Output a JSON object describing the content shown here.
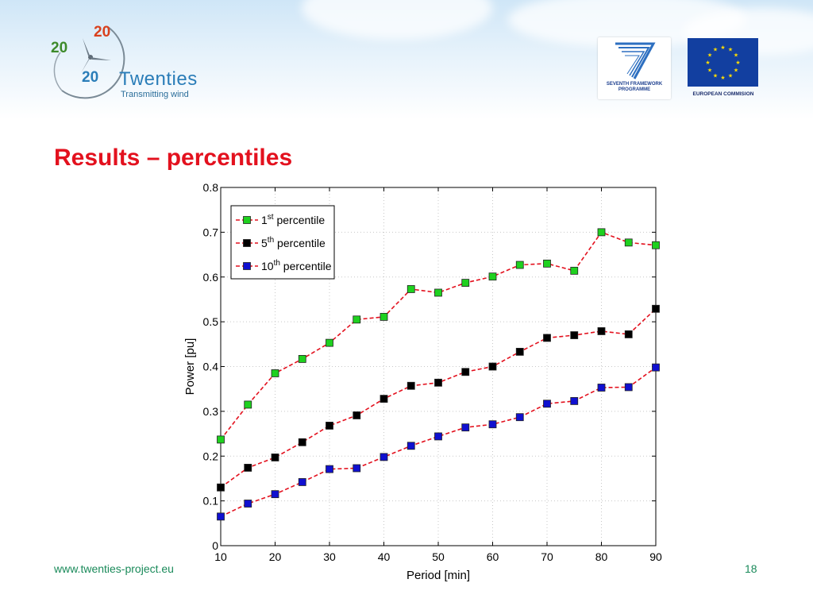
{
  "header": {
    "logo": {
      "top_number": "20",
      "left_number": "20",
      "bottom_number": "20",
      "name": "Twenties",
      "tagline": "Transmitting wind"
    },
    "fp7_logo": {
      "line1": "SEVENTH FRAMEWORK",
      "line2": "PROGRAMME"
    },
    "eu_logo": {
      "label": "EUROPEAN COMMISION"
    }
  },
  "slide": {
    "title": "Results – percentiles"
  },
  "footer": {
    "url": "www.twenties-project.eu",
    "page_number": "18"
  },
  "colors": {
    "title": "#e3111e",
    "series_line": "#e3111e",
    "series_1": "#1fd11f",
    "series_2": "#000000",
    "series_3": "#1010d0",
    "footer_text": "#1a8a5a",
    "logo_blue": "#2a7db8"
  },
  "chart_data": {
    "type": "line",
    "xlabel": "Period [min]",
    "ylabel": "Power [pu]",
    "xlim": [
      10,
      90
    ],
    "ylim": [
      0,
      0.8
    ],
    "xticks": [
      "10",
      "20",
      "30",
      "40",
      "50",
      "60",
      "70",
      "80",
      "90"
    ],
    "yticks": [
      "0",
      "0.1",
      "0.2",
      "0.3",
      "0.4",
      "0.5",
      "0.6",
      "0.7",
      "0.8"
    ],
    "grid": true,
    "legend_position": "top-left",
    "x": [
      10,
      15,
      20,
      25,
      30,
      35,
      40,
      45,
      50,
      55,
      60,
      65,
      70,
      75,
      80,
      85,
      90
    ],
    "series": [
      {
        "name_base": "1",
        "name_sup": "st",
        "name_suffix": "percentile",
        "color": "#1fd11f",
        "values": [
          0.237,
          0.315,
          0.385,
          0.417,
          0.453,
          0.505,
          0.511,
          0.573,
          0.565,
          0.587,
          0.601,
          0.627,
          0.63,
          0.614,
          0.7,
          0.677,
          0.671
        ]
      },
      {
        "name_base": "5",
        "name_sup": "th",
        "name_suffix": "percentile",
        "color": "#000000",
        "values": [
          0.13,
          0.174,
          0.197,
          0.231,
          0.268,
          0.291,
          0.328,
          0.357,
          0.364,
          0.388,
          0.4,
          0.433,
          0.464,
          0.47,
          0.479,
          0.472,
          0.529
        ]
      },
      {
        "name_base": "10",
        "name_sup": "th",
        "name_suffix": "percentile",
        "color": "#1010d0",
        "values": [
          0.065,
          0.094,
          0.115,
          0.142,
          0.171,
          0.173,
          0.198,
          0.223,
          0.244,
          0.264,
          0.271,
          0.287,
          0.317,
          0.323,
          0.353,
          0.354,
          0.398
        ]
      }
    ]
  }
}
